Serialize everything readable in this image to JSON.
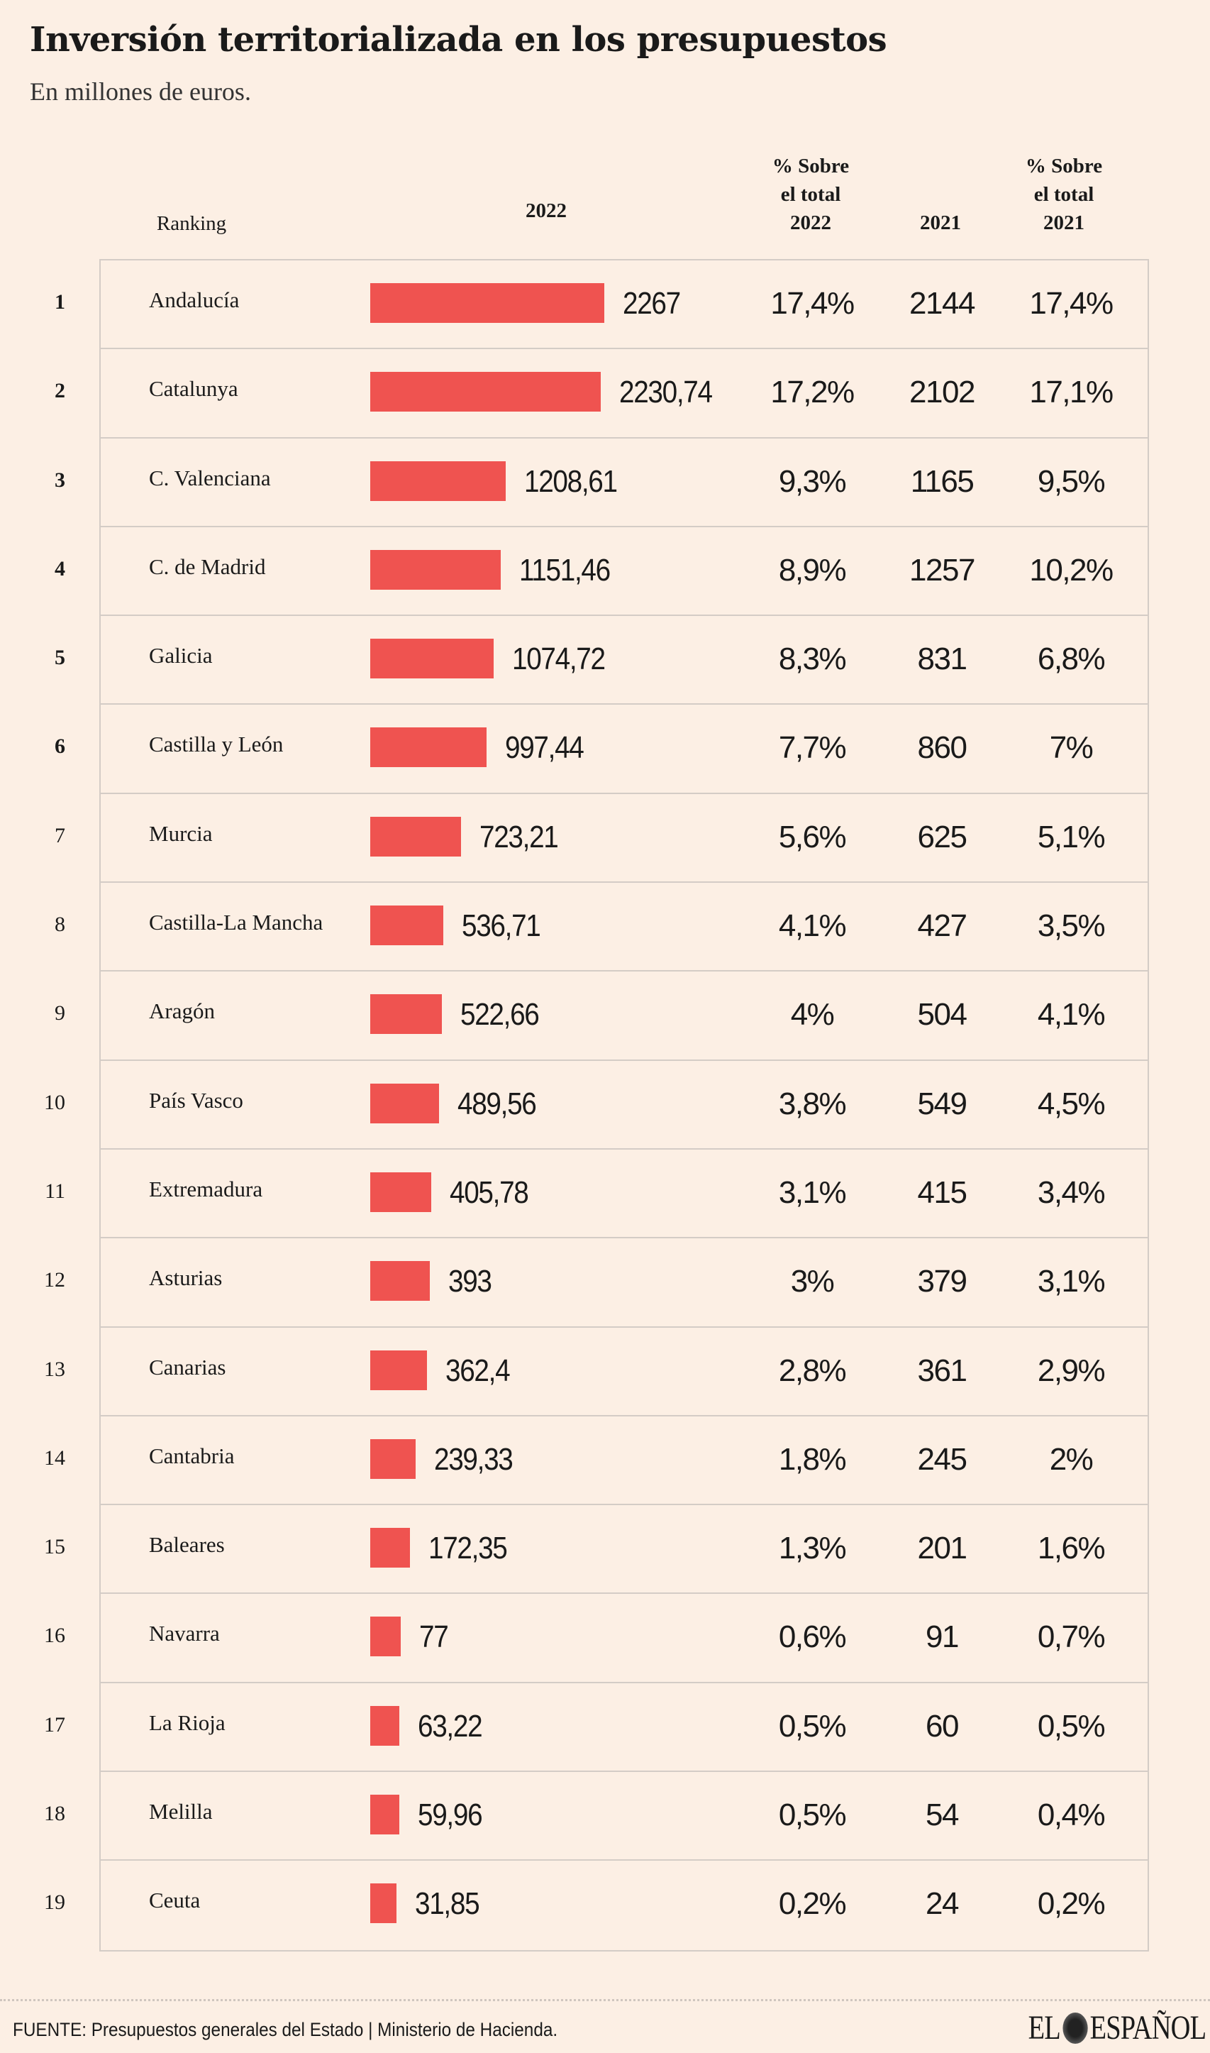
{
  "title": "Inversión territorializada en los presupuestos",
  "subtitle": "En millones de euros.",
  "headers": {
    "ranking": "Ranking",
    "y2022": "2022",
    "pct2022": [
      "% Sobre",
      "el total",
      "2022"
    ],
    "y2021": "2021",
    "pct2021": [
      "% Sobre",
      "el total",
      "2021"
    ]
  },
  "colors": {
    "bar": "#ef5350",
    "background": "#fcefe4"
  },
  "chart_data": {
    "type": "table",
    "columns": [
      "Ranking",
      "",
      "2022",
      "% Sobre el total 2022",
      "2021",
      "% Sobre el total 2021"
    ],
    "rows": [
      {
        "rank": "1",
        "name": "Andalucía",
        "v2022": 2267,
        "l2022": "2267",
        "p2022": "17,4%",
        "v2021": "2144",
        "p2021": "17,4%"
      },
      {
        "rank": "2",
        "name": "Catalunya",
        "v2022": 2230.74,
        "l2022": "2230,74",
        "p2022": "17,2%",
        "v2021": "2102",
        "p2021": "17,1%"
      },
      {
        "rank": "3",
        "name": "C. Valenciana",
        "v2022": 1208.61,
        "l2022": "1208,61",
        "p2022": "9,3%",
        "v2021": "1165",
        "p2021": "9,5%"
      },
      {
        "rank": "4",
        "name": "C. de Madrid",
        "v2022": 1151.46,
        "l2022": "1151,46",
        "p2022": "8,9%",
        "v2021": "1257",
        "p2021": "10,2%"
      },
      {
        "rank": "5",
        "name": "Galicia",
        "v2022": 1074.72,
        "l2022": "1074,72",
        "p2022": "8,3%",
        "v2021": "831",
        "p2021": "6,8%"
      },
      {
        "rank": "6",
        "name": "Castilla y León",
        "v2022": 997.44,
        "l2022": "997,44",
        "p2022": "7,7%",
        "v2021": "860",
        "p2021": "7%"
      },
      {
        "rank": "7",
        "name": "Murcia",
        "v2022": 723.21,
        "l2022": "723,21",
        "p2022": "5,6%",
        "v2021": "625",
        "p2021": "5,1%"
      },
      {
        "rank": "8",
        "name": "Castilla-La Mancha",
        "v2022": 536.71,
        "l2022": "536,71",
        "p2022": "4,1%",
        "v2021": "427",
        "p2021": "3,5%"
      },
      {
        "rank": "9",
        "name": "Aragón",
        "v2022": 522.66,
        "l2022": "522,66",
        "p2022": "4%",
        "v2021": "504",
        "p2021": "4,1%"
      },
      {
        "rank": "10",
        "name": "País Vasco",
        "v2022": 489.56,
        "l2022": "489,56",
        "p2022": "3,8%",
        "v2021": "549",
        "p2021": "4,5%"
      },
      {
        "rank": "11",
        "name": "Extremadura",
        "v2022": 405.78,
        "l2022": "405,78",
        "p2022": "3,1%",
        "v2021": "415",
        "p2021": "3,4%"
      },
      {
        "rank": "12",
        "name": "Asturias",
        "v2022": 393,
        "l2022": "393",
        "p2022": "3%",
        "v2021": "379",
        "p2021": "3,1%"
      },
      {
        "rank": "13",
        "name": "Canarias",
        "v2022": 362.4,
        "l2022": "362,4",
        "p2022": "2,8%",
        "v2021": "361",
        "p2021": "2,9%"
      },
      {
        "rank": "14",
        "name": "Cantabria",
        "v2022": 239.33,
        "l2022": "239,33",
        "p2022": "1,8%",
        "v2021": "245",
        "p2021": "2%"
      },
      {
        "rank": "15",
        "name": "Baleares",
        "v2022": 172.35,
        "l2022": "172,35",
        "p2022": "1,3%",
        "v2021": "201",
        "p2021": "1,6%"
      },
      {
        "rank": "16",
        "name": "Navarra",
        "v2022": 77,
        "l2022": "77",
        "p2022": "0,6%",
        "v2021": "91",
        "p2021": "0,7%"
      },
      {
        "rank": "17",
        "name": "La Rioja",
        "v2022": 63.22,
        "l2022": "63,22",
        "p2022": "0,5%",
        "v2021": "60",
        "p2021": "0,5%"
      },
      {
        "rank": "18",
        "name": "Melilla",
        "v2022": 59.96,
        "l2022": "59,96",
        "p2022": "0,5%",
        "v2021": "54",
        "p2021": "0,4%"
      },
      {
        "rank": "19",
        "name": "Ceuta",
        "v2022": 31.85,
        "l2022": "31,85",
        "p2022": "0,2%",
        "v2021": "24",
        "p2021": "0,2%"
      }
    ]
  },
  "footer": {
    "source": "FUENTE: Presupuestos generales del Estado | Ministerio de Hacienda.",
    "logo": "EL ESPAÑOL"
  }
}
